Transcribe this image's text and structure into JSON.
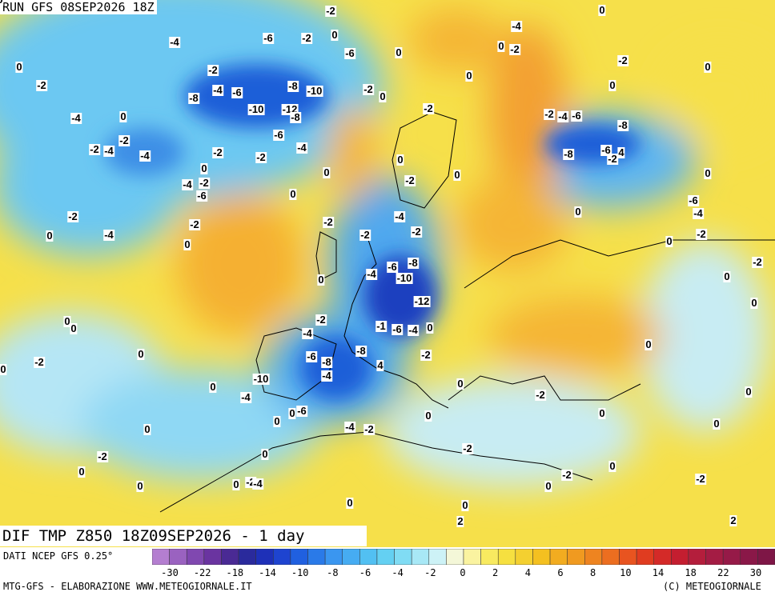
{
  "header": {
    "run": "RUN GFS 08SEP2026 18Z",
    "product": "DIF TMP Z850 18Z09SEP2026 - 1 day",
    "source": "DATI NCEP GFS 0.25°",
    "credit": "MTG-GFS - ELABORAZIONE WWW.METEOGIORNALE.IT",
    "copyright": "(C) METEOGIORNALE"
  },
  "legend": {
    "labels": [
      "-30",
      "-22",
      "-18",
      "-14",
      "-10",
      "-8",
      "-6",
      "-4",
      "-2",
      "0",
      "2",
      "4",
      "6",
      "8",
      "10",
      "14",
      "18",
      "22",
      "30"
    ]
  },
  "contour_labels": [
    "-2",
    "-4",
    "-4",
    "-6",
    "-2",
    "0",
    "-6",
    "0",
    "0",
    "0",
    "-2",
    "-2",
    "0",
    "0",
    "-2",
    "-2",
    "-4",
    "-6",
    "-8",
    "-8",
    "-10",
    "-2",
    "0",
    "0",
    "0",
    "-4",
    "0",
    "-10",
    "-12",
    "-8",
    "-2",
    "-2",
    "-4",
    "-6",
    "-8",
    "-2",
    "-2",
    "-4",
    "-4",
    "-6",
    "-4",
    "-2",
    "-2",
    "-8",
    "-6",
    "-2",
    "4",
    "0",
    "0",
    "0",
    "0",
    "0",
    "-4",
    "-2",
    "-6",
    "0",
    "-2",
    "-6",
    "-4",
    "-2",
    "-2",
    "-4",
    "0",
    "0",
    "-4",
    "-2",
    "-2",
    "-2",
    "-2",
    "0",
    "0",
    "-2",
    "-6",
    "-8",
    "-4",
    "-10",
    "0",
    "0",
    "-12",
    "0",
    "0",
    "0",
    "-2",
    "-1",
    "-6",
    "-4",
    "0",
    "-4",
    "0",
    "0",
    "-8",
    "-2",
    "-6",
    "-8",
    "-2",
    "0",
    "4",
    "-4",
    "-10",
    "0",
    "0",
    "-4",
    "-2",
    "0",
    "0",
    "-6",
    "0",
    "-4",
    "-2",
    "0",
    "0",
    "0",
    "0",
    "-2",
    "0",
    "-2",
    "0",
    "0",
    "-2",
    "-2",
    "0",
    "-2",
    "-4",
    "0",
    "0",
    "0",
    "0",
    "2",
    "2",
    "0"
  ]
}
